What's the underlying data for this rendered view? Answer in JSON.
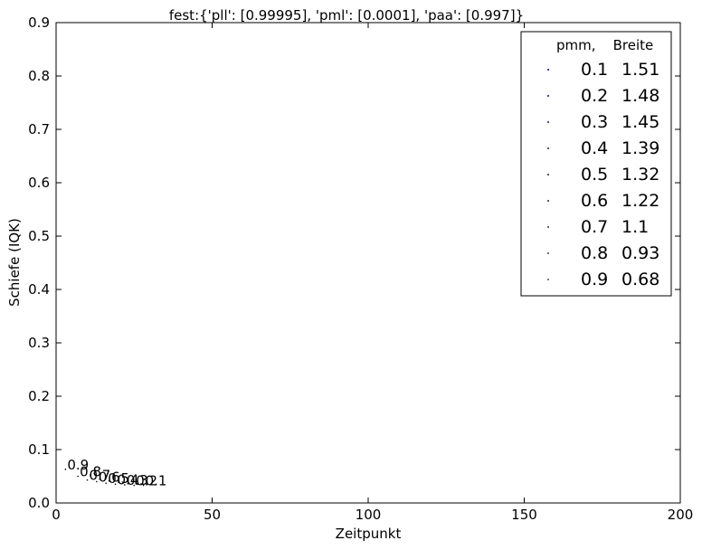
{
  "chart_data": {
    "type": "scatter",
    "title": "fest:{'pll': [0.99995], 'pml': [0.0001], 'paa': [0.997]}",
    "xlabel": "Zeitpunkt",
    "ylabel": "Schiefe (IQK)",
    "xlim": [
      0,
      200
    ],
    "ylim": [
      0,
      0.9
    ],
    "x_ticks": [
      0,
      50,
      100,
      150,
      200
    ],
    "y_ticks": [
      0.0,
      0.1,
      0.2,
      0.3,
      0.4,
      0.5,
      0.6,
      0.7,
      0.8,
      0.9
    ],
    "x_tick_labels": [
      "0",
      "50",
      "100",
      "150",
      "200"
    ],
    "y_tick_labels": [
      "0.0",
      "0.1",
      "0.2",
      "0.3",
      "0.4",
      "0.5",
      "0.6",
      "0.7",
      "0.8",
      "0.9"
    ],
    "grid": false,
    "legend": {
      "placement": "top-right",
      "header": "pmm,    Breite",
      "entries": [
        {
          "pmm": "0.1",
          "breite": "1.51",
          "color": "#00008b"
        },
        {
          "pmm": "0.2",
          "breite": "1.48",
          "color": "#0d0d78"
        },
        {
          "pmm": "0.3",
          "breite": "1.45",
          "color": "#1a1a66"
        },
        {
          "pmm": "0.4",
          "breite": "1.39",
          "color": "#222255"
        },
        {
          "pmm": "0.5",
          "breite": "1.32",
          "color": "#282844"
        },
        {
          "pmm": "0.6",
          "breite": "1.22",
          "color": "#2e2e3a"
        },
        {
          "pmm": "0.7",
          "breite": "1.1",
          "color": "#333333"
        },
        {
          "pmm": "0.8",
          "breite": "0.93",
          "color": "#444444"
        },
        {
          "pmm": "0.9",
          "breite": "0.68",
          "color": "#555555"
        }
      ]
    },
    "series": [
      {
        "label": "0.9",
        "x": 3,
        "y": 0.063
      },
      {
        "label": "0.8",
        "x": 7,
        "y": 0.05
      },
      {
        "label": "0.7",
        "x": 10,
        "y": 0.043
      },
      {
        "label": "0.6",
        "x": 13,
        "y": 0.04
      },
      {
        "label": "0.5",
        "x": 16,
        "y": 0.037
      },
      {
        "label": "0.4",
        "x": 19,
        "y": 0.035
      },
      {
        "label": "0.3",
        "x": 22,
        "y": 0.034
      },
      {
        "label": "0.2",
        "x": 25,
        "y": 0.033
      },
      {
        "label": "0.1",
        "x": 28,
        "y": 0.033
      }
    ]
  }
}
